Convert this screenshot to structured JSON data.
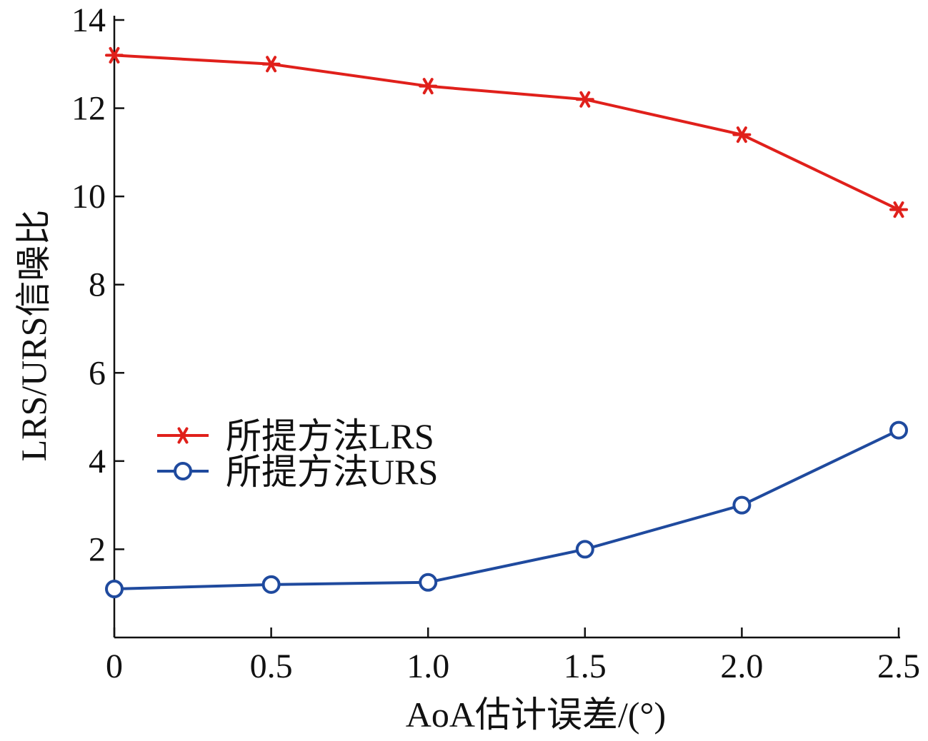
{
  "chart_data": {
    "type": "line",
    "title": "",
    "xlabel": "AoA估计误差/(°)",
    "ylabel": "LRS/URS信噪比",
    "x": [
      0,
      0.5,
      1.0,
      1.5,
      2.0,
      2.5
    ],
    "x_tick_labels": [
      "0",
      "0.5",
      "1.0",
      "1.5",
      "2.0",
      "2.5"
    ],
    "xlim": [
      0,
      2.5
    ],
    "y_ticks": [
      2,
      4,
      6,
      8,
      10,
      12,
      14
    ],
    "y_tick_labels": [
      "2",
      "4",
      "6",
      "8",
      "10",
      "12",
      "14"
    ],
    "ylim": [
      0,
      14
    ],
    "grid": false,
    "legend_position": "center-left",
    "series": [
      {
        "name": "所提方法LRS",
        "values": [
          13.2,
          13.0,
          12.5,
          12.2,
          11.4,
          9.7
        ],
        "color": "#e0201b",
        "marker": "asterisk"
      },
      {
        "name": "所提方法URS",
        "values": [
          1.1,
          1.2,
          1.25,
          2.0,
          3.0,
          4.7
        ],
        "color": "#1f4a9e",
        "marker": "circle"
      }
    ]
  }
}
